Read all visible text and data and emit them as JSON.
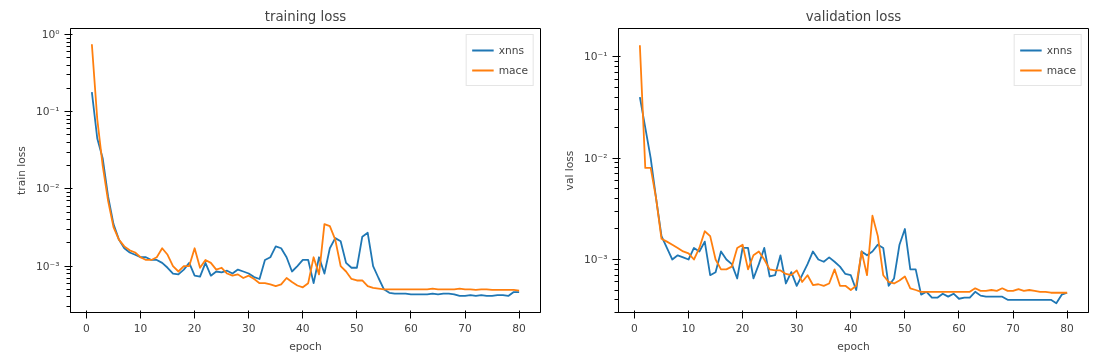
{
  "chart_data": [
    {
      "type": "line",
      "title": "training loss",
      "xlabel": "epoch",
      "ylabel": "train loss",
      "log": "y",
      "grid": false,
      "legend": "top right",
      "line_style": "solid",
      "marker": "none",
      "x": [
        1,
        2,
        3,
        4,
        5,
        6,
        7,
        8,
        9,
        10,
        11,
        12,
        13,
        14,
        15,
        16,
        17,
        18,
        19,
        20,
        21,
        22,
        23,
        24,
        25,
        26,
        27,
        28,
        29,
        30,
        31,
        32,
        33,
        34,
        35,
        36,
        37,
        38,
        39,
        40,
        41,
        42,
        43,
        44,
        45,
        46,
        47,
        48,
        49,
        50,
        51,
        52,
        53,
        54,
        55,
        56,
        57,
        58,
        59,
        60,
        61,
        62,
        63,
        64,
        65,
        66,
        67,
        68,
        69,
        70,
        71,
        72,
        73,
        74,
        75,
        76,
        77,
        78,
        79,
        80
      ],
      "xlim": [
        -2.95,
        83.95
      ],
      "xticks": [
        0,
        10,
        20,
        30,
        40,
        50,
        60,
        70,
        80
      ],
      "ylim": [
        0.00025,
        1.2
      ],
      "yticks": [
        {
          "value": 0.001,
          "label": "10⁻³"
        },
        {
          "value": 0.01,
          "label": "10⁻²"
        },
        {
          "value": 0.1,
          "label": "10⁻¹"
        },
        {
          "value": 1,
          "label": "10⁰"
        }
      ],
      "series": [
        {
          "name": "xnns",
          "color": "#1f77b4",
          "values": [
            0.18,
            0.045,
            0.025,
            0.008,
            0.0035,
            0.0022,
            0.0017,
            0.0015,
            0.0014,
            0.0013,
            0.0013,
            0.0012,
            0.0012,
            0.0011,
            0.00095,
            0.0008,
            0.00078,
            0.0009,
            0.0011,
            0.00075,
            0.00073,
            0.0011,
            0.00075,
            0.00085,
            0.00083,
            0.00087,
            0.0008,
            0.0009,
            0.00085,
            0.0008,
            0.00072,
            0.00068,
            0.0012,
            0.0013,
            0.0018,
            0.0017,
            0.0013,
            0.00085,
            0.001,
            0.0012,
            0.0012,
            0.0006,
            0.0013,
            0.0008,
            0.0017,
            0.0023,
            0.0021,
            0.0011,
            0.00095,
            0.00095,
            0.0024,
            0.0027,
            0.001,
            0.0007,
            0.0005,
            0.00045,
            0.00044,
            0.00044,
            0.00044,
            0.00043,
            0.00043,
            0.00043,
            0.00043,
            0.00044,
            0.00043,
            0.00044,
            0.00044,
            0.00043,
            0.00041,
            0.00041,
            0.00042,
            0.00041,
            0.00042,
            0.00041,
            0.00041,
            0.00042,
            0.00042,
            0.00041,
            0.00046,
            0.00046
          ]
        },
        {
          "name": "mace",
          "color": "#ff7f0e",
          "values": [
            0.75,
            0.08,
            0.02,
            0.007,
            0.0032,
            0.0022,
            0.0018,
            0.0016,
            0.0015,
            0.0013,
            0.0012,
            0.0012,
            0.0013,
            0.0017,
            0.0014,
            0.001,
            0.00085,
            0.001,
            0.001,
            0.0017,
            0.00095,
            0.0012,
            0.0011,
            0.0009,
            0.00095,
            0.0008,
            0.00075,
            0.00078,
            0.0007,
            0.00075,
            0.00068,
            0.0006,
            0.0006,
            0.00058,
            0.00055,
            0.00058,
            0.0007,
            0.00062,
            0.00056,
            0.00053,
            0.0006,
            0.0013,
            0.00078,
            0.0035,
            0.0033,
            0.0022,
            0.001,
            0.00085,
            0.00068,
            0.00065,
            0.00065,
            0.00055,
            0.00052,
            0.00051,
            0.0005,
            0.0005,
            0.0005,
            0.0005,
            0.0005,
            0.0005,
            0.0005,
            0.0005,
            0.0005,
            0.00051,
            0.0005,
            0.0005,
            0.0005,
            0.0005,
            0.00051,
            0.0005,
            0.0005,
            0.00049,
            0.0005,
            0.0005,
            0.00049,
            0.00049,
            0.00049,
            0.00049,
            0.00049,
            0.00048
          ]
        }
      ]
    },
    {
      "type": "line",
      "title": "validation loss",
      "xlabel": "epoch",
      "ylabel": "val loss",
      "log": "y",
      "grid": false,
      "legend": "top right",
      "line_style": "solid",
      "marker": "none",
      "x": [
        1,
        2,
        3,
        4,
        5,
        6,
        7,
        8,
        9,
        10,
        11,
        12,
        13,
        14,
        15,
        16,
        17,
        18,
        19,
        20,
        21,
        22,
        23,
        24,
        25,
        26,
        27,
        28,
        29,
        30,
        31,
        32,
        33,
        34,
        35,
        36,
        37,
        38,
        39,
        40,
        41,
        42,
        43,
        44,
        45,
        46,
        47,
        48,
        49,
        50,
        51,
        52,
        53,
        54,
        55,
        56,
        57,
        58,
        59,
        60,
        61,
        62,
        63,
        64,
        65,
        66,
        67,
        68,
        69,
        70,
        71,
        72,
        73,
        74,
        75,
        76,
        77,
        78,
        79,
        80
      ],
      "xlim": [
        -2.95,
        83.95
      ],
      "xticks": [
        0,
        10,
        20,
        30,
        40,
        50,
        60,
        70,
        80
      ],
      "ylim": [
        0.0003,
        0.19
      ],
      "yticks": [
        {
          "value": 0.001,
          "label": "10⁻³"
        },
        {
          "value": 0.01,
          "label": "10⁻²"
        },
        {
          "value": 0.1,
          "label": "10⁻¹"
        }
      ],
      "series": [
        {
          "name": "xnns",
          "color": "#1f77b4",
          "values": [
            0.04,
            0.02,
            0.01,
            0.004,
            0.0017,
            0.0013,
            0.001,
            0.0011,
            0.00105,
            0.001,
            0.0013,
            0.0012,
            0.0015,
            0.0007,
            0.00075,
            0.0012,
            0.001,
            0.0009,
            0.00065,
            0.0013,
            0.0013,
            0.00065,
            0.0009,
            0.0013,
            0.00068,
            0.0007,
            0.0011,
            0.00058,
            0.00075,
            0.00055,
            0.0007,
            0.0009,
            0.0012,
            0.001,
            0.00095,
            0.00105,
            0.00095,
            0.00085,
            0.00072,
            0.0007,
            0.0005,
            0.0012,
            0.0011,
            0.0012,
            0.0014,
            0.0013,
            0.00055,
            0.00065,
            0.0014,
            0.002,
            0.0008,
            0.0008,
            0.00045,
            0.00048,
            0.00042,
            0.00042,
            0.00046,
            0.00043,
            0.00046,
            0.00041,
            0.00042,
            0.00042,
            0.00048,
            0.00044,
            0.00043,
            0.00043,
            0.00043,
            0.00043,
            0.0004,
            0.0004,
            0.0004,
            0.0004,
            0.0004,
            0.0004,
            0.0004,
            0.0004,
            0.0004,
            0.00037,
            0.00045,
            0.00047
          ]
        },
        {
          "name": "mace",
          "color": "#ff7f0e",
          "values": [
            0.13,
            0.008,
            0.008,
            0.004,
            0.0016,
            0.0015,
            0.0014,
            0.0013,
            0.0012,
            0.00115,
            0.001,
            0.0013,
            0.0019,
            0.0017,
            0.001,
            0.0008,
            0.0008,
            0.00085,
            0.0013,
            0.0014,
            0.0008,
            0.0011,
            0.0012,
            0.001,
            0.0008,
            0.00078,
            0.00078,
            0.00072,
            0.0007,
            0.00078,
            0.0006,
            0.0007,
            0.00056,
            0.00057,
            0.00055,
            0.00058,
            0.0008,
            0.00055,
            0.00055,
            0.0005,
            0.00055,
            0.0012,
            0.0007,
            0.0027,
            0.0017,
            0.0007,
            0.0006,
            0.00058,
            0.00062,
            0.00068,
            0.00052,
            0.0005,
            0.00048,
            0.00048,
            0.00048,
            0.00048,
            0.00048,
            0.00048,
            0.00048,
            0.00048,
            0.00048,
            0.00048,
            0.00052,
            0.00049,
            0.00049,
            0.0005,
            0.00049,
            0.00052,
            0.00049,
            0.00049,
            0.00051,
            0.00049,
            0.0005,
            0.00049,
            0.00048,
            0.00048,
            0.00047,
            0.00047,
            0.00047,
            0.00047
          ]
        }
      ]
    }
  ]
}
